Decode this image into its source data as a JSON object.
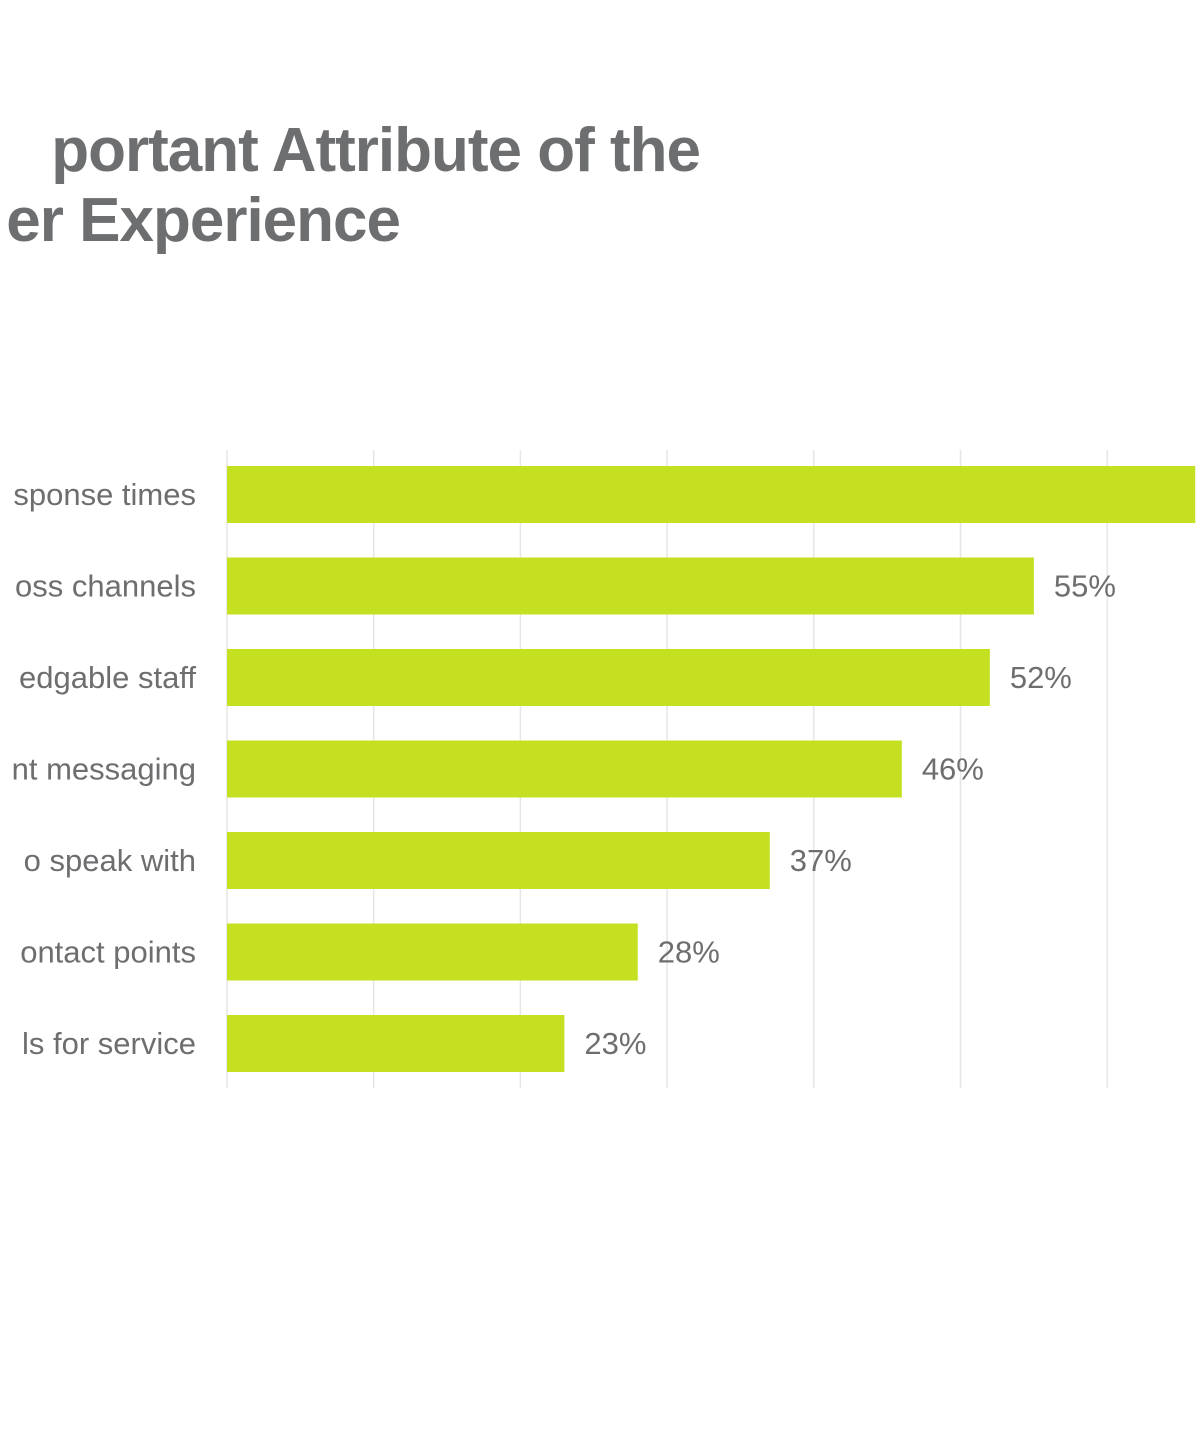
{
  "title": {
    "line1": "portant Attribute of the",
    "line2": "er Experience"
  },
  "colors": {
    "bar": "#c4e021",
    "text": "#6d6e70",
    "grid": "#e6e6e6"
  },
  "chart_data": {
    "type": "bar",
    "orientation": "horizontal",
    "title": "portant Attribute of the er Experience",
    "categories": [
      "sponse times",
      "oss channels",
      "edgable staff",
      "nt messaging",
      "o speak with",
      "ontact points",
      "ls for service"
    ],
    "values": [
      66,
      55,
      52,
      46,
      37,
      28,
      23
    ],
    "value_labels": [
      "",
      "55%",
      "52%",
      "46%",
      "37%",
      "28%",
      "23%"
    ],
    "xlim": [
      0,
      70
    ],
    "grid": true,
    "legend": "none"
  }
}
